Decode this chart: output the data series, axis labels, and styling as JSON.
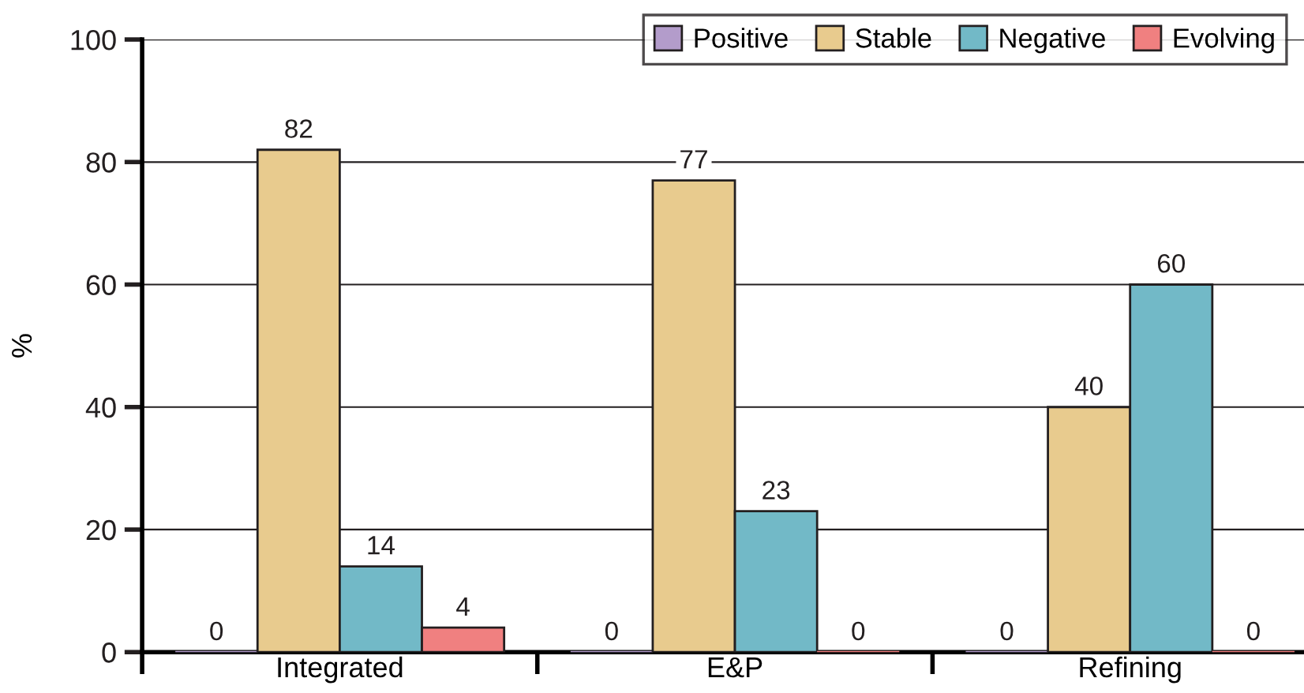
{
  "chart_data": {
    "type": "bar",
    "ylabel": "%",
    "categories": [
      "Integrated",
      "E&P",
      "Refining"
    ],
    "series": [
      {
        "name": "Positive",
        "color": "#b39ccb",
        "values": [
          0,
          0,
          0
        ]
      },
      {
        "name": "Stable",
        "color": "#e8cb8e",
        "values": [
          82,
          77,
          40
        ]
      },
      {
        "name": "Negative",
        "color": "#72b9c7",
        "values": [
          14,
          23,
          60
        ]
      },
      {
        "name": "Evolving",
        "color": "#f08080",
        "values": [
          4,
          0,
          0
        ]
      }
    ],
    "ylim": [
      0,
      100
    ],
    "yticks": [
      0,
      20,
      40,
      60,
      80,
      100
    ],
    "grid": "y",
    "legend": "top right",
    "data_labels": true
  }
}
